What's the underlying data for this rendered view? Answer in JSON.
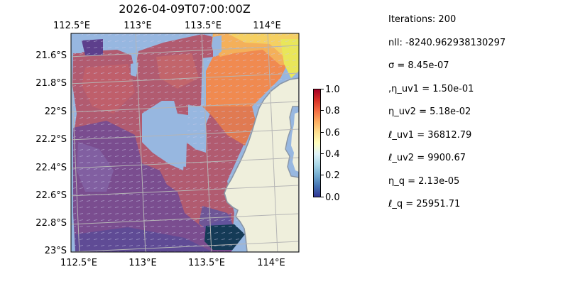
{
  "title": "2026-04-09T07:00:00Z",
  "map": {
    "lon_range": [
      112.5,
      114.2
    ],
    "lat_range": [
      -23.0,
      -21.4
    ],
    "x_ticks_top": [
      "112.5°E",
      "113°E",
      "113.5°E",
      "114°E"
    ],
    "x_ticks_bottom": [
      "112.5°E",
      "113°E",
      "113.5°E",
      "114°E"
    ],
    "y_ticks": [
      "21.6°S",
      "21.8°S",
      "22°S",
      "22.2°S",
      "22.4°S",
      "22.6°S",
      "22.8°S",
      "23°S"
    ],
    "colors": {
      "ocean_mask": "#97b7e0",
      "land": "#efefdc",
      "coast": "#8a96a6",
      "grid": "#b5b5b5"
    }
  },
  "colorbar": {
    "colormap": "RdYlBu_r",
    "range": [
      0.0,
      1.0
    ],
    "ticks": [
      "0.0",
      "0.2",
      "0.4",
      "0.6",
      "0.8",
      "1.0"
    ]
  },
  "params": [
    "Iterations: 200",
    "nll: -8240.962938130297",
    "σ = 8.45e-07",
    ",η_uv1 = 1.50e-01",
    "η_uv2 = 5.18e-02",
    "ℓ_uv1 = 36812.79",
    "ℓ_uv2 = 9900.67",
    "η_q = 2.13e-05",
    "ℓ_q = 25951.71"
  ]
}
